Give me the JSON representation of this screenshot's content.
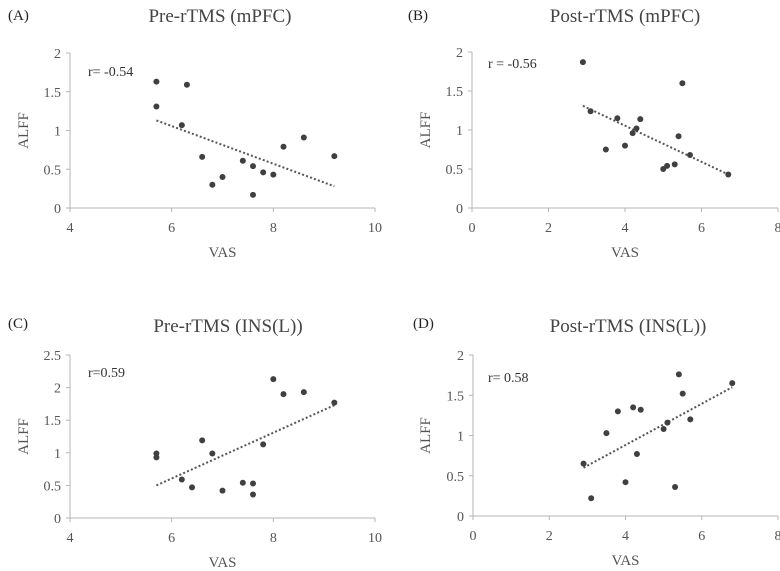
{
  "chart_data": [
    {
      "type": "scatter",
      "panel": "(A)",
      "title": "Pre-rTMS (mPFC)",
      "xlabel": "VAS",
      "ylabel": "ALFF",
      "xlim": [
        4,
        10
      ],
      "ylim": [
        0,
        2
      ],
      "xticks": [
        "4",
        "6",
        "8",
        "10"
      ],
      "yticks": [
        "0",
        "0.5",
        "1",
        "1.5",
        "2"
      ],
      "annotation": "r= -0.54",
      "points": [
        [
          5.7,
          1.63
        ],
        [
          5.7,
          1.31
        ],
        [
          6.2,
          1.07
        ],
        [
          6.3,
          1.59
        ],
        [
          6.6,
          0.66
        ],
        [
          6.8,
          0.3
        ],
        [
          7.0,
          0.4
        ],
        [
          7.4,
          0.61
        ],
        [
          7.6,
          0.54
        ],
        [
          7.6,
          0.17
        ],
        [
          7.8,
          0.46
        ],
        [
          8.0,
          0.43
        ],
        [
          8.2,
          0.79
        ],
        [
          8.6,
          0.91
        ],
        [
          9.2,
          0.67
        ]
      ],
      "trendline": [
        [
          5.7,
          1.13
        ],
        [
          9.2,
          0.28
        ]
      ],
      "grid": false,
      "legend": "none"
    },
    {
      "type": "scatter",
      "panel": "(B)",
      "title": "Post-rTMS (mPFC)",
      "xlabel": "VAS",
      "ylabel": "ALFF",
      "xlim": [
        0,
        8
      ],
      "ylim": [
        0,
        2
      ],
      "xticks": [
        "0",
        "2",
        "4",
        "6",
        "8"
      ],
      "yticks": [
        "0",
        "0.5",
        "1",
        "1.5",
        "2"
      ],
      "annotation": "r = -0.56",
      "points": [
        [
          2.9,
          1.87
        ],
        [
          3.1,
          1.24
        ],
        [
          3.5,
          0.75
        ],
        [
          3.8,
          1.15
        ],
        [
          4.0,
          0.8
        ],
        [
          4.2,
          0.96
        ],
        [
          4.3,
          1.02
        ],
        [
          4.4,
          1.14
        ],
        [
          5.0,
          0.5
        ],
        [
          5.1,
          0.54
        ],
        [
          5.3,
          0.56
        ],
        [
          5.4,
          0.92
        ],
        [
          5.5,
          1.6
        ],
        [
          5.7,
          0.68
        ],
        [
          6.7,
          0.43
        ]
      ],
      "trendline": [
        [
          2.9,
          1.31
        ],
        [
          6.7,
          0.43
        ]
      ],
      "grid": false,
      "legend": "none"
    },
    {
      "type": "scatter",
      "panel": "(C)",
      "title": "Pre-rTMS (INS(L))",
      "xlabel": "VAS",
      "ylabel": "ALFF",
      "xlim": [
        4,
        10
      ],
      "ylim": [
        0,
        2.5
      ],
      "xticks": [
        "4",
        "6",
        "8",
        "10"
      ],
      "yticks": [
        "0",
        "0.5",
        "1",
        "1.5",
        "2",
        "2.5"
      ],
      "annotation": "r=0.59",
      "points": [
        [
          5.7,
          0.99
        ],
        [
          5.7,
          0.93
        ],
        [
          6.2,
          0.59
        ],
        [
          6.4,
          0.47
        ],
        [
          6.6,
          1.19
        ],
        [
          6.8,
          0.99
        ],
        [
          7.0,
          0.42
        ],
        [
          7.4,
          0.54
        ],
        [
          7.6,
          0.53
        ],
        [
          7.6,
          0.36
        ],
        [
          7.8,
          1.13
        ],
        [
          8.0,
          2.13
        ],
        [
          8.2,
          1.9
        ],
        [
          8.6,
          1.93
        ],
        [
          9.2,
          1.77
        ]
      ],
      "trendline": [
        [
          5.7,
          0.5
        ],
        [
          9.2,
          1.73
        ]
      ],
      "grid": false,
      "legend": "none"
    },
    {
      "type": "scatter",
      "panel": "(D)",
      "title": "Post-rTMS (INS(L))",
      "xlabel": "VAS",
      "ylabel": "ALFF",
      "xlim": [
        0,
        8
      ],
      "ylim": [
        0,
        2
      ],
      "xticks": [
        "0",
        "2",
        "4",
        "6",
        "8"
      ],
      "yticks": [
        "0",
        "0.5",
        "1",
        "1.5",
        "2"
      ],
      "annotation": "r= 0.58",
      "points": [
        [
          2.9,
          0.65
        ],
        [
          3.1,
          0.22
        ],
        [
          3.5,
          1.03
        ],
        [
          3.8,
          1.3
        ],
        [
          4.0,
          0.42
        ],
        [
          4.2,
          1.35
        ],
        [
          4.3,
          0.77
        ],
        [
          4.4,
          1.32
        ],
        [
          5.0,
          1.08
        ],
        [
          5.1,
          1.16
        ],
        [
          5.3,
          0.36
        ],
        [
          5.4,
          1.76
        ],
        [
          5.5,
          1.52
        ],
        [
          5.7,
          1.2
        ],
        [
          6.8,
          1.65
        ]
      ],
      "trendline": [
        [
          2.9,
          0.6
        ],
        [
          6.8,
          1.6
        ]
      ],
      "grid": false,
      "legend": "none"
    }
  ]
}
